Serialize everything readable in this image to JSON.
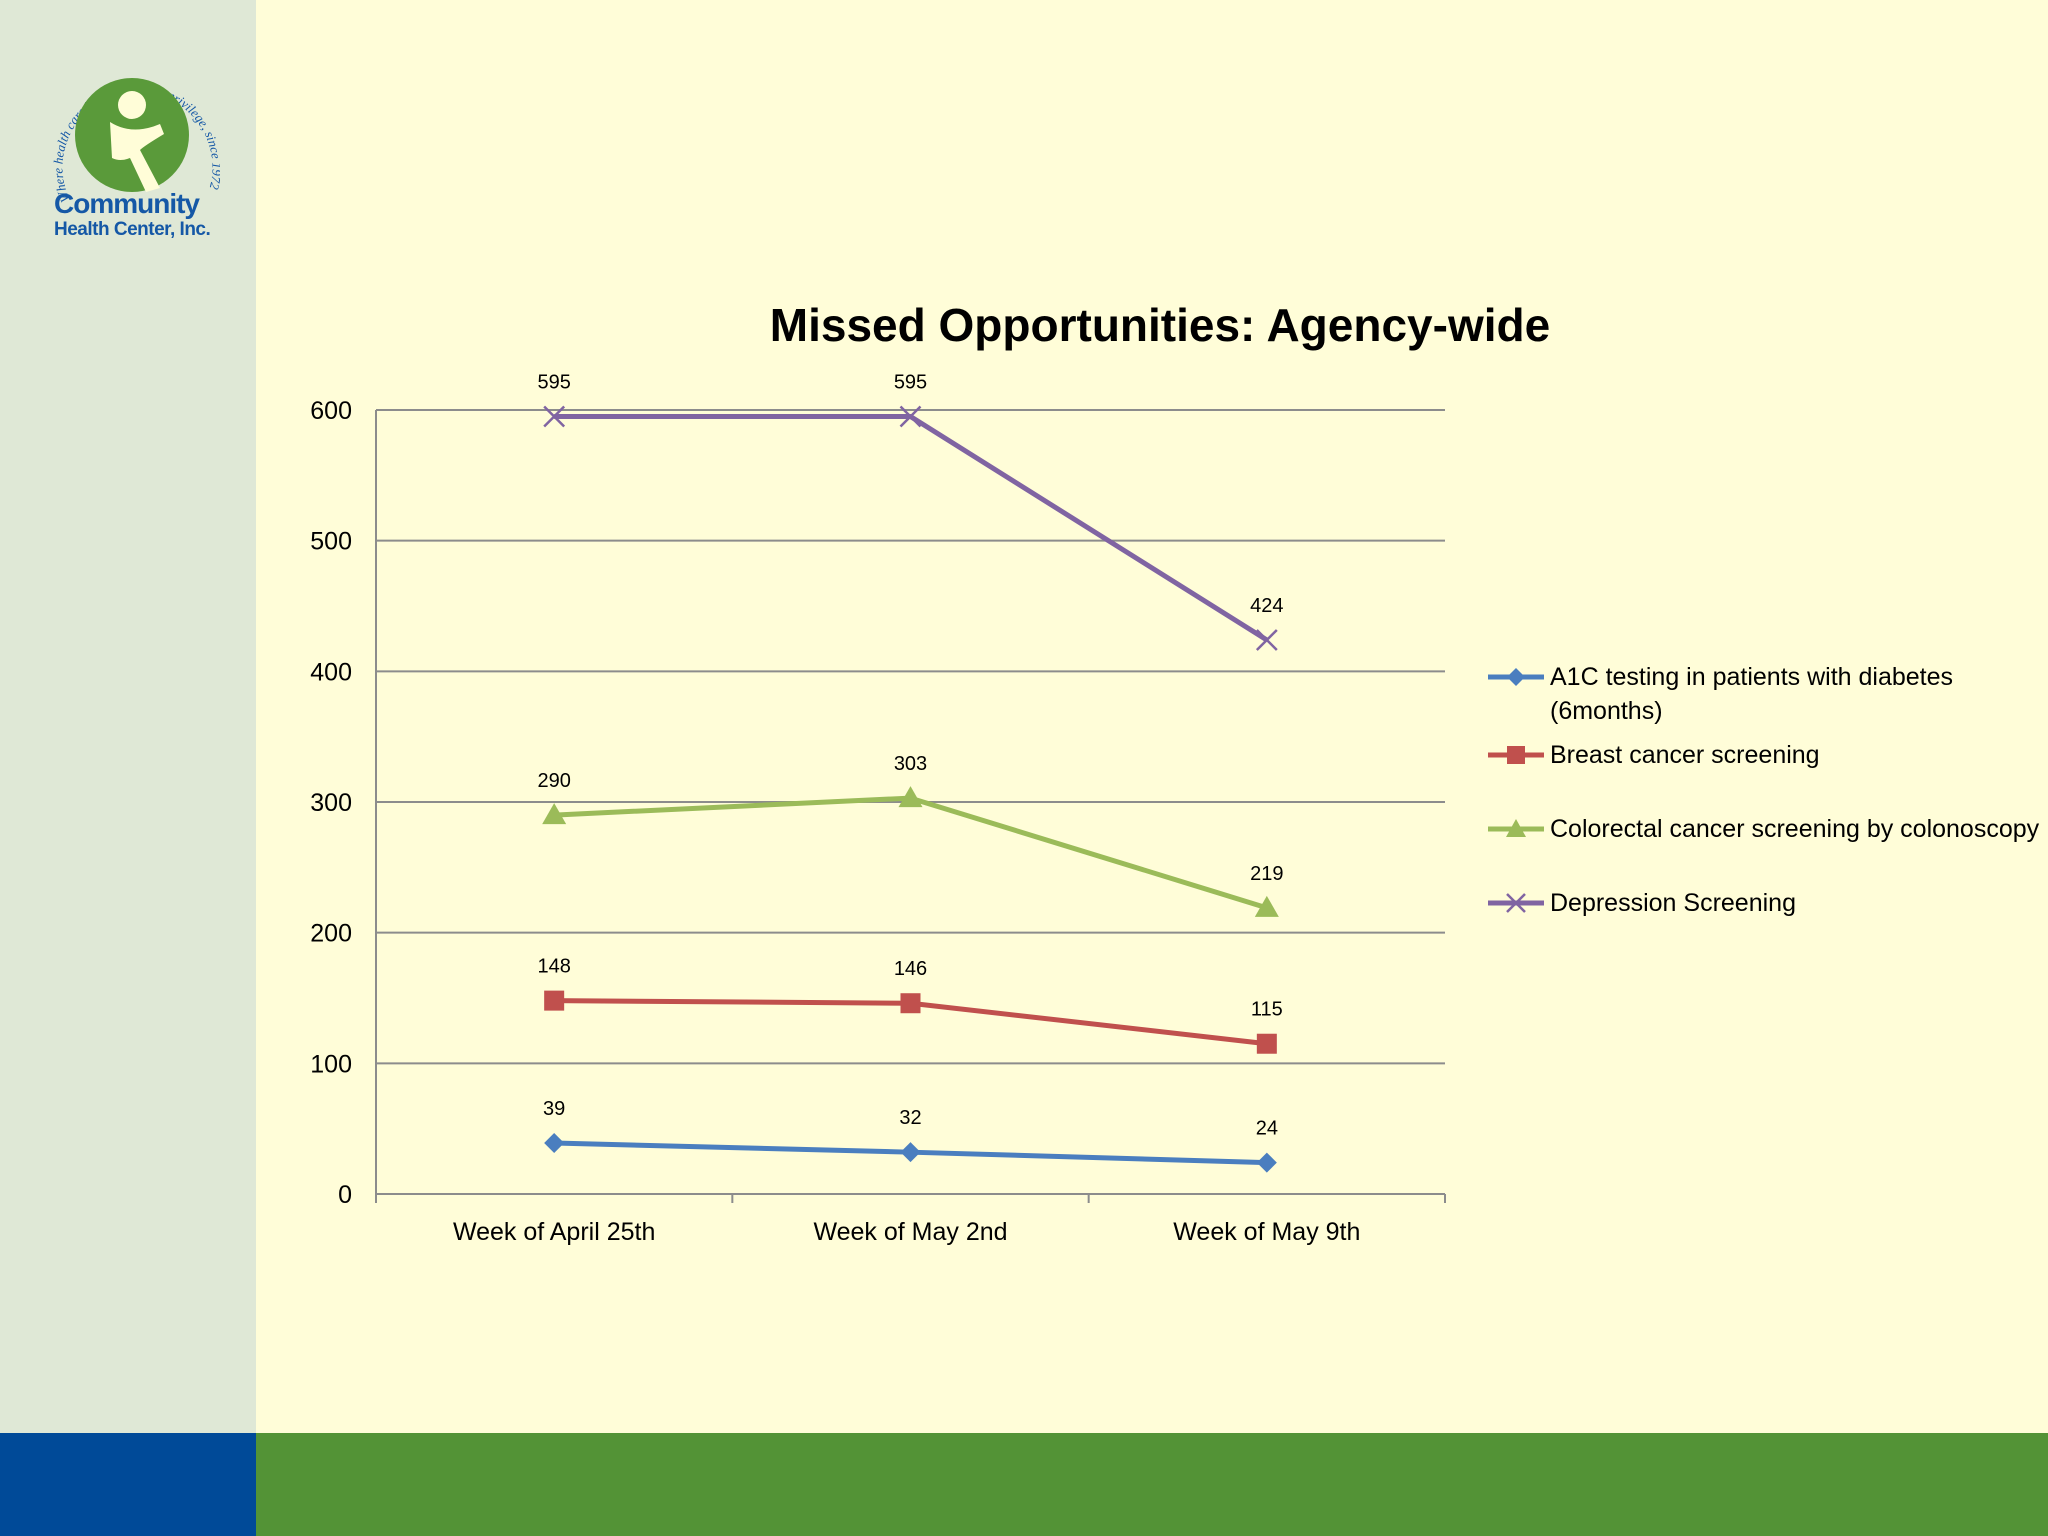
{
  "logo": {
    "tagline": "Where health care is a right, not a privilege, since 1972",
    "name_line1": "Community",
    "name_line2": "Health Center, Inc."
  },
  "colors": {
    "sidebar": "#dfe8d6",
    "background": "#fffdd8",
    "footer_blue": "#004a98",
    "footer_green": "#539336",
    "logo_green": "#5a9a3a",
    "logo_blue": "#1558a6"
  },
  "chart_data": {
    "type": "line",
    "title": "Missed Opportunities: Agency-wide",
    "xlabel": "",
    "ylabel": "",
    "categories": [
      "Week of April 25th",
      "Week of May 2nd",
      "Week of May 9th"
    ],
    "ylim": [
      0,
      600
    ],
    "yticks": [
      0,
      100,
      200,
      300,
      400,
      500,
      600
    ],
    "grid": true,
    "legend_position": "right",
    "series": [
      {
        "name": "A1C testing in patients with diabetes (6months)",
        "values": [
          39,
          32,
          24
        ],
        "color": "#4a7ebf",
        "marker": "diamond"
      },
      {
        "name": "Breast cancer screening",
        "values": [
          148,
          146,
          115
        ],
        "color": "#c0504d",
        "marker": "square"
      },
      {
        "name": "Colorectal cancer screening by colonoscopy",
        "values": [
          290,
          303,
          219
        ],
        "color": "#9bbb59",
        "marker": "triangle"
      },
      {
        "name": "Depression Screening",
        "values": [
          595,
          595,
          424
        ],
        "color": "#8064a2",
        "marker": "x"
      }
    ]
  }
}
